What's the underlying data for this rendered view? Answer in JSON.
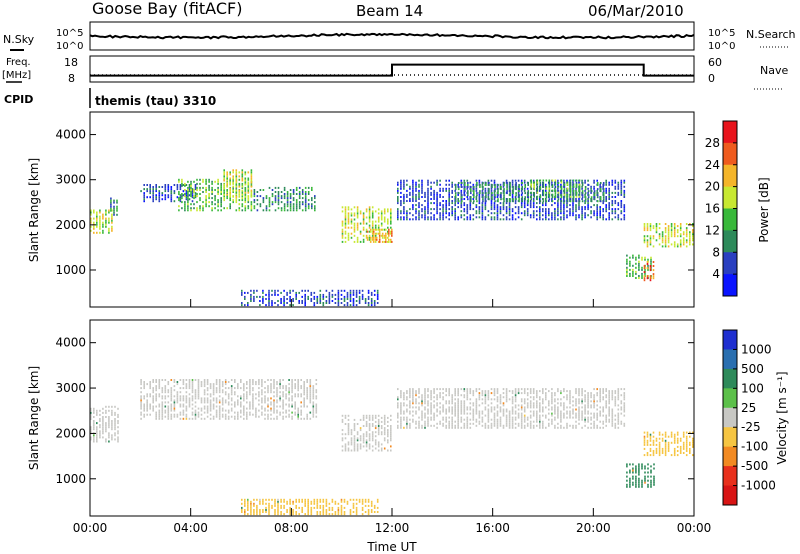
{
  "header": {
    "station": "Goose Bay (fitACF)",
    "beam": "Beam 14",
    "date": "06/Mar/2010"
  },
  "strip_labels": {
    "nsky": "N.Sky",
    "nsearch": "N.Search",
    "freq": "Freq.",
    "freq_unit": "[MHz]",
    "nave": "Nave",
    "cpid": "CPID",
    "cpid_value": "themis (tau) 3310"
  },
  "strip_ticks": {
    "noise_left": [
      "10^5",
      "10^0"
    ],
    "noise_right": [
      "10^5",
      "10^0"
    ],
    "freq_left": [
      "18",
      "8"
    ],
    "nave_right": [
      "60",
      "0"
    ]
  },
  "axes": {
    "ylabel": "Slant Range [km]",
    "xlabel": "Time UT",
    "y_ticks": [
      "1000",
      "2000",
      "3000",
      "4000"
    ],
    "x_ticks": [
      "00:00",
      "04:00",
      "08:00",
      "12:00",
      "16:00",
      "20:00",
      "00:00"
    ]
  },
  "colorbars": {
    "power": {
      "label": "Power [dB]",
      "ticks": [
        "4",
        "8",
        "12",
        "16",
        "20",
        "24",
        "28"
      ],
      "colors": [
        "#0a14ff",
        "#2a3fc0",
        "#2d8a5a",
        "#39b83a",
        "#c8e832",
        "#f4b52a",
        "#ef5b1e",
        "#e8141c"
      ]
    },
    "velocity": {
      "label": "Velocity [m s⁻¹]",
      "ticks": [
        "1000",
        "500",
        "100",
        "25",
        "-25",
        "-100",
        "-500",
        "-1000"
      ],
      "colors": [
        "#1f2fd0",
        "#2a6fb0",
        "#2e8a5a",
        "#5cc04a",
        "#c8c8c4",
        "#f6c542",
        "#f28a22",
        "#e8301c",
        "#d81414"
      ]
    }
  },
  "chart_data": {
    "type": "heatmap",
    "title": "Goose Bay (fitACF) Beam 14 06/Mar/2010",
    "xlabel": "Time UT",
    "ylabel": "Slant Range [km]",
    "xlim_hours": [
      0,
      24
    ],
    "ylim_km": [
      180,
      4500
    ],
    "grid": false,
    "frequency_mhz": [
      {
        "from_hour": 0,
        "to_hour": 12,
        "value": 10
      },
      {
        "from_hour": 12,
        "to_hour": 22,
        "value": 15
      },
      {
        "from_hour": 22,
        "to_hour": 24,
        "value": 10
      }
    ],
    "nave": 0,
    "power_regions": [
      {
        "t0": 0.0,
        "t1": 0.9,
        "r0": 1800,
        "r1": 2300,
        "level": 4
      },
      {
        "t0": 0.8,
        "t1": 1.1,
        "r0": 2200,
        "r1": 2600,
        "level": 2
      },
      {
        "t0": 2.0,
        "t1": 4.2,
        "r0": 2500,
        "r1": 2900,
        "level": 1
      },
      {
        "t0": 3.5,
        "t1": 6.5,
        "r0": 2300,
        "r1": 3000,
        "level": 3
      },
      {
        "t0": 5.3,
        "t1": 6.5,
        "r0": 2600,
        "r1": 3200,
        "level": 4
      },
      {
        "t0": 6.5,
        "t1": 9.0,
        "r0": 2300,
        "r1": 2800,
        "level": 2
      },
      {
        "t0": 10.0,
        "t1": 12.0,
        "r0": 1600,
        "r1": 2400,
        "level": 4
      },
      {
        "t0": 11.0,
        "t1": 12.0,
        "r0": 1600,
        "r1": 1900,
        "level": 5
      },
      {
        "t0": 12.2,
        "t1": 21.3,
        "r0": 2100,
        "r1": 3000,
        "level": 1
      },
      {
        "t0": 14.5,
        "t1": 20.5,
        "r0": 2500,
        "r1": 2950,
        "level": 2
      },
      {
        "t0": 17.5,
        "t1": 19.5,
        "r0": 2600,
        "r1": 3000,
        "level": 3
      },
      {
        "t0": 21.3,
        "t1": 22.3,
        "r0": 800,
        "r1": 1300,
        "level": 3
      },
      {
        "t0": 22.0,
        "t1": 22.4,
        "r0": 750,
        "r1": 1200,
        "level": 6
      },
      {
        "t0": 22.0,
        "t1": 24.0,
        "r0": 1500,
        "r1": 2000,
        "level": 4
      },
      {
        "t0": 6.0,
        "t1": 11.5,
        "r0": 200,
        "r1": 550,
        "level": 1
      }
    ],
    "velocity_regions": [
      {
        "t0": 0.0,
        "t1": 1.1,
        "r0": 1800,
        "r1": 2600,
        "v": 0
      },
      {
        "t0": 2.0,
        "t1": 9.0,
        "r0": 2300,
        "r1": 3200,
        "v": 0
      },
      {
        "t0": 10.0,
        "t1": 12.0,
        "r0": 1600,
        "r1": 2400,
        "v": 0
      },
      {
        "t0": 12.2,
        "t1": 21.3,
        "r0": 2100,
        "r1": 3000,
        "v": 0
      },
      {
        "t0": 21.3,
        "t1": 22.4,
        "r0": 800,
        "r1": 1300,
        "v": 150
      },
      {
        "t0": 22.0,
        "t1": 24.0,
        "r0": 1500,
        "r1": 2000,
        "v": -60
      },
      {
        "t0": 6.0,
        "t1": 11.5,
        "r0": 200,
        "r1": 550,
        "v": -60
      }
    ]
  }
}
